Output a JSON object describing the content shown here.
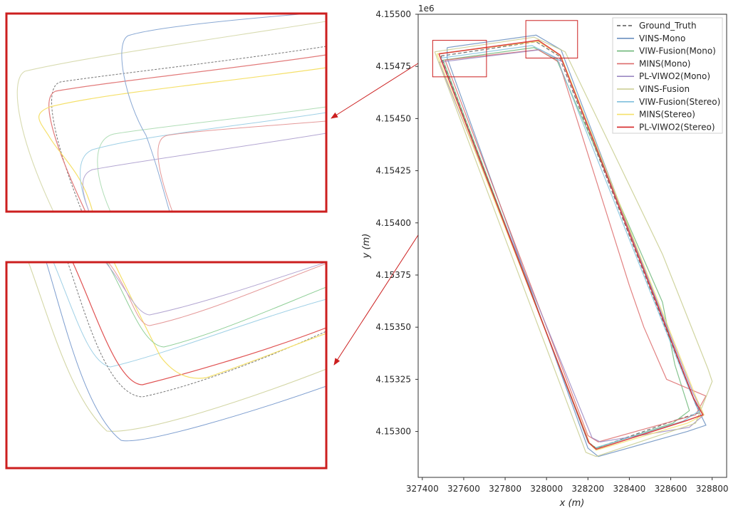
{
  "chart_data": {
    "type": "line",
    "title": "",
    "xlabel": "x (m)",
    "ylabel": "y (m)",
    "y_offset_label": "1e6",
    "xlim": [
      327380,
      328870
    ],
    "ylim": [
      4152780,
      4155000
    ],
    "x_ticks": [
      327400,
      327600,
      327800,
      328000,
      328200,
      328400,
      328600,
      328800
    ],
    "x_tick_labels": [
      "327400",
      "327600",
      "327800",
      "328000",
      "328200",
      "328400",
      "328600",
      "328800"
    ],
    "y_ticks": [
      4.153,
      4.15325,
      4.1535,
      4.15375,
      4.154,
      4.15425,
      4.1545,
      4.15475,
      4.155
    ],
    "y_tick_labels": [
      "4.15300",
      "4.15325",
      "4.15350",
      "4.15375",
      "4.15400",
      "4.15425",
      "4.15450",
      "4.15475",
      "4.15500"
    ],
    "grid": false,
    "legend_position": "top-right",
    "series": [
      {
        "name": "Ground_Truth",
        "color": "#555555",
        "dashed": true,
        "points": [
          [
            327490,
            4154800
          ],
          [
            327950,
            4154868
          ],
          [
            328060,
            4154800
          ],
          [
            328700,
            4153180
          ],
          [
            328740,
            4153090
          ],
          [
            328640,
            4153060
          ],
          [
            328240,
            4152920
          ],
          [
            328200,
            4152950
          ],
          [
            327490,
            4154800
          ]
        ]
      },
      {
        "name": "VINS-Mono",
        "color": "#6a8fbf",
        "dashed": false,
        "points": [
          [
            327520,
            4154840
          ],
          [
            327950,
            4154900
          ],
          [
            328070,
            4154830
          ],
          [
            328720,
            4153130
          ],
          [
            328770,
            4153030
          ],
          [
            328680,
            4153000
          ],
          [
            328250,
            4152880
          ],
          [
            328200,
            4152920
          ],
          [
            327520,
            4154790
          ],
          [
            327520,
            4154840
          ]
        ]
      },
      {
        "name": "VIW-Fusion(Mono)",
        "color": "#6fb87a",
        "dashed": false,
        "points": [
          [
            327500,
            4154780
          ],
          [
            327940,
            4154840
          ],
          [
            328050,
            4154780
          ],
          [
            328560,
            4153620
          ],
          [
            328620,
            4153320
          ],
          [
            328690,
            4153100
          ],
          [
            328610,
            4153040
          ],
          [
            328240,
            4152920
          ],
          [
            328200,
            4152950
          ],
          [
            327500,
            4154780
          ]
        ]
      },
      {
        "name": "MINS(Mono)",
        "color": "#dd6b6b",
        "dashed": false,
        "points": [
          [
            327510,
            4154780
          ],
          [
            327960,
            4154830
          ],
          [
            328060,
            4154770
          ],
          [
            328400,
            4153700
          ],
          [
            328470,
            4153500
          ],
          [
            328580,
            4153250
          ],
          [
            328770,
            4153170
          ],
          [
            328720,
            4153080
          ],
          [
            328250,
            4152950
          ],
          [
            328200,
            4152980
          ],
          [
            327510,
            4154780
          ]
        ]
      },
      {
        "name": "PL-VIWO2(Mono)",
        "color": "#9b88c2",
        "dashed": false,
        "points": [
          [
            327480,
            4154770
          ],
          [
            327970,
            4154830
          ],
          [
            328080,
            4154770
          ],
          [
            328710,
            4153180
          ],
          [
            328760,
            4153080
          ],
          [
            328690,
            4153020
          ],
          [
            328260,
            4152950
          ],
          [
            328220,
            4152970
          ],
          [
            327480,
            4154770
          ]
        ]
      },
      {
        "name": "VINS-Fusion",
        "color": "#c8cc8e",
        "dashed": false,
        "points": [
          [
            327460,
            4154820
          ],
          [
            327940,
            4154890
          ],
          [
            328090,
            4154820
          ],
          [
            328560,
            4153850
          ],
          [
            328780,
            4153300
          ],
          [
            328800,
            4153240
          ],
          [
            328720,
            4153040
          ],
          [
            328240,
            4152880
          ],
          [
            328190,
            4152900
          ],
          [
            327460,
            4154820
          ]
        ]
      },
      {
        "name": "VIW-Fusion(Stereo)",
        "color": "#7fbfdc",
        "dashed": false,
        "points": [
          [
            327490,
            4154790
          ],
          [
            327930,
            4154850
          ],
          [
            328050,
            4154790
          ],
          [
            328690,
            4153200
          ],
          [
            328740,
            4153100
          ],
          [
            328660,
            4153050
          ],
          [
            328230,
            4152920
          ],
          [
            328200,
            4152950
          ],
          [
            327490,
            4154790
          ]
        ]
      },
      {
        "name": "MINS(Stereo)",
        "color": "#f5e06a",
        "dashed": false,
        "points": [
          [
            327470,
            4154810
          ],
          [
            327960,
            4154870
          ],
          [
            328070,
            4154800
          ],
          [
            328720,
            4153170
          ],
          [
            328760,
            4153080
          ],
          [
            328680,
            4153040
          ],
          [
            328240,
            4152910
          ],
          [
            328210,
            4152940
          ],
          [
            327470,
            4154810
          ]
        ]
      },
      {
        "name": "PL-VIWO2(Stereo)",
        "color": "#d62728",
        "dashed": false,
        "points": [
          [
            327480,
            4154810
          ],
          [
            327960,
            4154875
          ],
          [
            328065,
            4154805
          ],
          [
            328710,
            4153160
          ],
          [
            328755,
            4153080
          ],
          [
            328670,
            4153050
          ],
          [
            328240,
            4152915
          ],
          [
            328205,
            4152945
          ],
          [
            327480,
            4154810
          ]
        ]
      }
    ],
    "annotations": [
      {
        "name": "zoom-box-top-left",
        "x_range": [
          327450,
          327710
        ],
        "y_range": [
          4154700,
          4154875
        ]
      },
      {
        "name": "zoom-box-top",
        "x_range": [
          327900,
          328150
        ],
        "y_range": [
          4154790,
          4154970
        ]
      }
    ]
  },
  "insets": {
    "border_color": "#cc1f1f",
    "arrow_color": "#cc1f1f"
  }
}
